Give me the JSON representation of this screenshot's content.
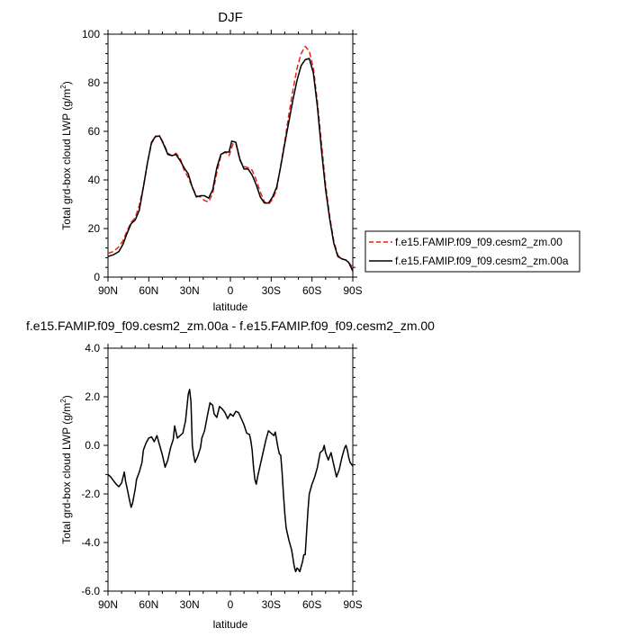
{
  "chart_data": [
    {
      "type": "line",
      "title": "DJF",
      "xlabel": "latitude",
      "ylabel": "Total grd-box cloud LWP (g/m",
      "ylabel_sup": "2",
      "ylabel_tail": ")",
      "xlim": [
        90,
        -90
      ],
      "ylim": [
        0,
        100
      ],
      "x_ticks": [
        90,
        60,
        30,
        0,
        -30,
        -60,
        -90
      ],
      "x_tick_labels": [
        "90N",
        "60N",
        "30N",
        "0",
        "30S",
        "60S",
        "90S"
      ],
      "y_ticks": [
        0,
        20,
        40,
        60,
        80,
        100
      ],
      "y_tick_labels": [
        "0",
        "20",
        "40",
        "60",
        "80",
        "100"
      ],
      "legend_position": "right",
      "series": [
        {
          "name": "f.e15.FAMIP.f09_f09.cesm2_zm.00",
          "color": "#e8221b",
          "dash": "dashed",
          "points": [
            [
              90,
              9.8
            ],
            [
              86,
              10.5
            ],
            [
              82,
              12.5
            ],
            [
              79,
              15
            ],
            [
              76,
              19
            ],
            [
              73,
              22.5
            ],
            [
              70,
              24.5
            ],
            [
              67,
              29.5
            ],
            [
              64,
              37
            ],
            [
              61,
              47
            ],
            [
              58,
              55
            ],
            [
              55,
              57.8
            ],
            [
              52,
              58.2
            ],
            [
              49,
              55
            ],
            [
              46,
              51
            ],
            [
              43,
              50
            ],
            [
              40,
              51
            ],
            [
              37,
              49
            ],
            [
              34,
              44
            ],
            [
              31,
              41
            ],
            [
              28,
              37
            ],
            [
              25,
              33.5
            ],
            [
              22,
              33
            ],
            [
              19,
              31.5
            ],
            [
              16,
              31
            ],
            [
              13,
              34.5
            ],
            [
              10,
              43
            ],
            [
              7,
              50
            ],
            [
              4,
              51.5
            ],
            [
              1,
              50
            ],
            [
              -2,
              55
            ],
            [
              -4,
              55
            ],
            [
              -7,
              48
            ],
            [
              -10,
              45.5
            ],
            [
              -13,
              45
            ],
            [
              -16,
              44
            ],
            [
              -19,
              40
            ],
            [
              -22,
              35
            ],
            [
              -25,
              31
            ],
            [
              -28,
              30
            ],
            [
              -31,
              32
            ],
            [
              -34,
              36
            ],
            [
              -37,
              46
            ],
            [
              -40,
              56
            ],
            [
              -43,
              67
            ],
            [
              -46,
              77
            ],
            [
              -49,
              86
            ],
            [
              -52,
              92
            ],
            [
              -55,
              95
            ],
            [
              -58,
              93
            ],
            [
              -61,
              86
            ],
            [
              -64,
              72
            ],
            [
              -67,
              55
            ],
            [
              -70,
              38
            ],
            [
              -73,
              25
            ],
            [
              -76,
              15
            ],
            [
              -79,
              9
            ],
            [
              -82,
              7.5
            ],
            [
              -85,
              7
            ],
            [
              -87,
              6
            ],
            [
              -90,
              4
            ]
          ]
        },
        {
          "name": "f.e15.FAMIP.f09_f09.cesm2_zm.00a",
          "color": "#000000",
          "dash": "solid",
          "points": [
            [
              90,
              8.5
            ],
            [
              86,
              9.2
            ],
            [
              82,
              10.5
            ],
            [
              79,
              13.5
            ],
            [
              76,
              18
            ],
            [
              73,
              22
            ],
            [
              70,
              23.5
            ],
            [
              67,
              27.5
            ],
            [
              64,
              37
            ],
            [
              61,
              47
            ],
            [
              58,
              55.5
            ],
            [
              55,
              58
            ],
            [
              52,
              58
            ],
            [
              49,
              54.5
            ],
            [
              46,
              50.5
            ],
            [
              43,
              50
            ],
            [
              40,
              50.5
            ],
            [
              37,
              48
            ],
            [
              34,
              45
            ],
            [
              31,
              42.5
            ],
            [
              28,
              37
            ],
            [
              25,
              33
            ],
            [
              22,
              33.5
            ],
            [
              19,
              33.5
            ],
            [
              16,
              32.5
            ],
            [
              13,
              36
            ],
            [
              10,
              45
            ],
            [
              7,
              50.5
            ],
            [
              4,
              51.5
            ],
            [
              1,
              51.5
            ],
            [
              -1,
              56
            ],
            [
              -4,
              55.5
            ],
            [
              -7,
              48.5
            ],
            [
              -10,
              44.5
            ],
            [
              -13,
              44.5
            ],
            [
              -16,
              42
            ],
            [
              -19,
              38
            ],
            [
              -22,
              33
            ],
            [
              -25,
              30.5
            ],
            [
              -28,
              30.5
            ],
            [
              -31,
              33
            ],
            [
              -34,
              37
            ],
            [
              -37,
              45.5
            ],
            [
              -40,
              55
            ],
            [
              -43,
              64
            ],
            [
              -46,
              73
            ],
            [
              -49,
              81
            ],
            [
              -52,
              87
            ],
            [
              -55,
              89.5
            ],
            [
              -58,
              90
            ],
            [
              -61,
              84
            ],
            [
              -64,
              70
            ],
            [
              -67,
              52
            ],
            [
              -70,
              36
            ],
            [
              -73,
              24
            ],
            [
              -76,
              14
            ],
            [
              -79,
              8.5
            ],
            [
              -82,
              7.5
            ],
            [
              -85,
              7
            ],
            [
              -87,
              6
            ],
            [
              -90,
              2.5
            ]
          ]
        }
      ]
    },
    {
      "type": "line",
      "title": "f.e15.FAMIP.f09_f09.cesm2_zm.00a - f.e15.FAMIP.f09_f09.cesm2_zm.00",
      "xlabel": "latitude",
      "ylabel": "Total grd-box cloud LWP (g/m",
      "ylabel_sup": "2",
      "ylabel_tail": ")",
      "xlim": [
        90,
        -90
      ],
      "ylim": [
        -6,
        4
      ],
      "x_ticks": [
        90,
        60,
        30,
        0,
        -30,
        -60,
        -90
      ],
      "x_tick_labels": [
        "90N",
        "60N",
        "30N",
        "0",
        "30S",
        "60S",
        "90S"
      ],
      "y_ticks": [
        4,
        2,
        0,
        -2,
        -4,
        -6
      ],
      "y_tick_labels": [
        "4.0",
        "2.0",
        "0.0",
        "-2.0",
        "-4.0",
        "-6.0"
      ],
      "series": [
        {
          "color": "#000000",
          "dash": "solid",
          "points": [
            [
              90,
              -1.2
            ],
            [
              88,
              -1.3
            ],
            [
              86,
              -1.45
            ],
            [
              84,
              -1.6
            ],
            [
              82,
              -1.7
            ],
            [
              80,
              -1.55
            ],
            [
              78,
              -1.1
            ],
            [
              77,
              -1.5
            ],
            [
              76,
              -1.75
            ],
            [
              74,
              -2.3
            ],
            [
              73,
              -2.55
            ],
            [
              72,
              -2.4
            ],
            [
              70,
              -1.8
            ],
            [
              69,
              -1.4
            ],
            [
              67,
              -1.1
            ],
            [
              65,
              -0.7
            ],
            [
              64,
              -0.2
            ],
            [
              62,
              0.1
            ],
            [
              60,
              0.3
            ],
            [
              58,
              0.35
            ],
            [
              56,
              0.15
            ],
            [
              54,
              0.4
            ],
            [
              52,
              0.0
            ],
            [
              50,
              -0.4
            ],
            [
              48,
              -0.9
            ],
            [
              46,
              -0.6
            ],
            [
              44,
              -0.1
            ],
            [
              42,
              0.25
            ],
            [
              41,
              0.8
            ],
            [
              39,
              0.3
            ],
            [
              37,
              0.4
            ],
            [
              35,
              0.5
            ],
            [
              33,
              1.0
            ],
            [
              31,
              2.1
            ],
            [
              30,
              2.3
            ],
            [
              29,
              1.8
            ],
            [
              28,
              0.0
            ],
            [
              27,
              -0.4
            ],
            [
              26,
              -0.7
            ],
            [
              24,
              -0.45
            ],
            [
              22,
              -0.1
            ],
            [
              21,
              0.3
            ],
            [
              19,
              0.6
            ],
            [
              17,
              1.2
            ],
            [
              15,
              1.75
            ],
            [
              13,
              1.65
            ],
            [
              12,
              1.3
            ],
            [
              10,
              1.15
            ],
            [
              8,
              1.6
            ],
            [
              6,
              1.5
            ],
            [
              4,
              1.35
            ],
            [
              2,
              1.1
            ],
            [
              0,
              1.3
            ],
            [
              -2,
              1.2
            ],
            [
              -4,
              1.4
            ],
            [
              -6,
              1.35
            ],
            [
              -8,
              1.1
            ],
            [
              -10,
              0.85
            ],
            [
              -12,
              0.5
            ],
            [
              -14,
              0.45
            ],
            [
              -15,
              0.2
            ],
            [
              -16,
              -0.2
            ],
            [
              -17,
              -0.9
            ],
            [
              -18,
              -1.4
            ],
            [
              -19,
              -1.6
            ],
            [
              -20,
              -1.3
            ],
            [
              -22,
              -0.8
            ],
            [
              -24,
              -0.3
            ],
            [
              -26,
              0.2
            ],
            [
              -28,
              0.6
            ],
            [
              -30,
              0.5
            ],
            [
              -32,
              0.4
            ],
            [
              -33,
              0.55
            ],
            [
              -35,
              -0.1
            ],
            [
              -36,
              -0.35
            ],
            [
              -37,
              -0.4
            ],
            [
              -38,
              -1.1
            ],
            [
              -39,
              -2.0
            ],
            [
              -40,
              -2.8
            ],
            [
              -41,
              -3.4
            ],
            [
              -43,
              -3.9
            ],
            [
              -44,
              -4.1
            ],
            [
              -45,
              -4.3
            ],
            [
              -46,
              -4.65
            ],
            [
              -47,
              -5.0
            ],
            [
              -48,
              -5.2
            ],
            [
              -49,
              -5.05
            ],
            [
              -50,
              -5.1
            ],
            [
              -51,
              -5.2
            ],
            [
              -52,
              -5.0
            ],
            [
              -53,
              -4.8
            ],
            [
              -54,
              -4.5
            ],
            [
              -55,
              -4.5
            ],
            [
              -56,
              -3.6
            ],
            [
              -57,
              -2.7
            ],
            [
              -58,
              -2.0
            ],
            [
              -60,
              -1.6
            ],
            [
              -62,
              -1.3
            ],
            [
              -64,
              -0.9
            ],
            [
              -66,
              -0.3
            ],
            [
              -68,
              -0.2
            ],
            [
              -69,
              0.0
            ],
            [
              -70,
              -0.3
            ],
            [
              -72,
              -0.6
            ],
            [
              -74,
              -0.3
            ],
            [
              -76,
              -0.8
            ],
            [
              -78,
              -1.3
            ],
            [
              -80,
              -1.0
            ],
            [
              -82,
              -0.5
            ],
            [
              -84,
              -0.1
            ],
            [
              -85,
              0.0
            ],
            [
              -86,
              -0.2
            ],
            [
              -87,
              -0.5
            ],
            [
              -88,
              -0.7
            ],
            [
              -90,
              -0.85
            ]
          ]
        }
      ]
    }
  ]
}
